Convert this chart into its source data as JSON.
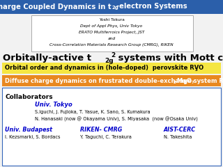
{
  "title_bg": "#2b5faa",
  "title_fg": "#ffffff",
  "author_lines": [
    "Yoshi Tokura",
    "Dept of Appl Phys, Univ Tokyo",
    "ERATO Multiferroics Project, JST",
    "and",
    "Cross-Correlation Materials Research Group (CMRG), RIKEN"
  ],
  "yellow_bg": "#f5e642",
  "orange_bg": "#e88820",
  "collab_color": "#0000cc",
  "collab_box_border": "#3366bb",
  "tokyo_line1": "S.Iguchi, J. Fujioka, T. Yasue, K. Sano, S. Kumakura",
  "tokyo_line2": "N. Hanasaki (now @ Okayama Univ), S. Miyasaka  (now @Osaka Univ)",
  "budapest_line": "I. Kezsmarki, S. Bordacs",
  "riken_line": "Y. Taguchi, C. Terakura",
  "aist_line": "N. Takeshita"
}
